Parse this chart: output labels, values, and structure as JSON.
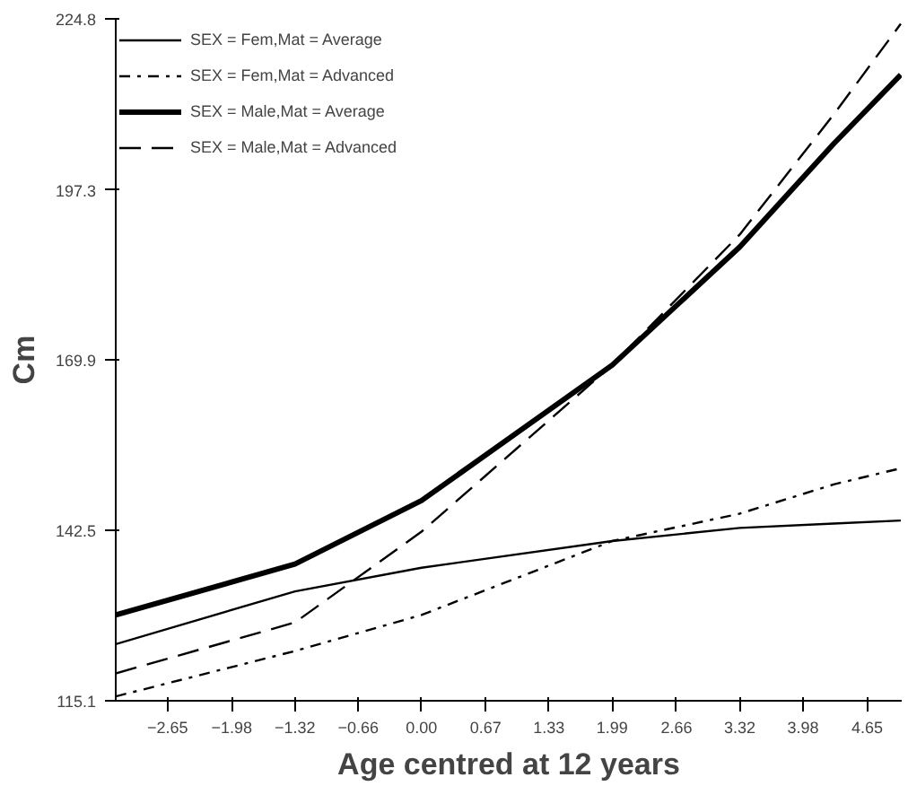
{
  "chart_data": {
    "type": "line",
    "xlabel": "Age centred at 12 years",
    "ylabel": "Cm",
    "xlim": [
      -3.19,
      5.01
    ],
    "ylim": [
      115.1,
      224.8
    ],
    "xticks": [
      -2.65,
      -1.98,
      -1.32,
      -0.66,
      {
        "value": 0,
        "label": "0.00"
      },
      0.67,
      1.33,
      1.99,
      2.66,
      3.32,
      3.98,
      4.65
    ],
    "yticks": [
      115.1,
      142.5,
      169.9,
      197.3,
      224.8
    ],
    "x": [
      -3.19,
      -1.32,
      0,
      1.99,
      3.32,
      4.3,
      5.0
    ],
    "grid": false,
    "legend": "top left",
    "marker": "none",
    "series": [
      {
        "name": "SEX = Fem,Mat = Average",
        "color": "#000000",
        "line_style": "solid",
        "values": [
          124.2,
          132.7,
          136.5,
          140.8,
          142.9,
          143.6,
          144.1
        ]
      },
      {
        "name": "SEX = Fem,Mat = Advanced",
        "color": "#000000",
        "line_style": "dotted",
        "values": [
          115.8,
          123.1,
          128.9,
          140.8,
          145.2,
          149.9,
          152.5
        ]
      },
      {
        "name": "SEX = Male,Mat = Average",
        "color": "#000000",
        "line_style": "solid",
        "values": [
          128.9,
          137.1,
          147.3,
          169.1,
          188.1,
          204.7,
          215.8
        ]
      },
      {
        "name": "SEX = Male,Mat = Advanced",
        "color": "#000000",
        "line_style": "dashed",
        "values": [
          119.5,
          127.7,
          142.3,
          169.1,
          190.1,
          209.4,
          224.0
        ]
      }
    ]
  }
}
